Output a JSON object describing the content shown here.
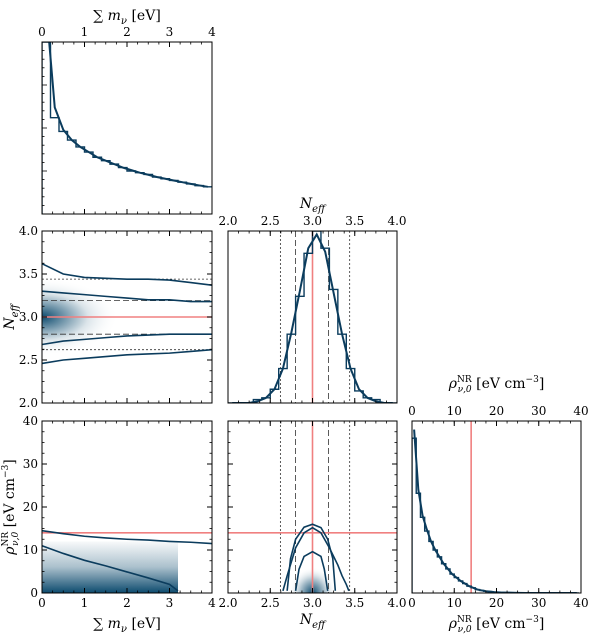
{
  "chart_data": {
    "type": "corner",
    "colors": {
      "posterior": "#0b3c5d",
      "truth": "#f08080",
      "interval": "#333333",
      "density_dark": "#0d4b6e",
      "frame": "#000000"
    },
    "parameters": [
      {
        "id": "sum_mnu",
        "label_main": "∑ m",
        "label_sub": "ν",
        "label_unit": " [eV]",
        "range": [
          0,
          4
        ],
        "ticks": [
          0,
          1,
          2,
          3,
          4
        ],
        "tick_labels": [
          "0",
          "1",
          "2",
          "3",
          "4"
        ]
      },
      {
        "id": "neff",
        "label_main": "N",
        "label_sub": "eff",
        "label_unit": "",
        "range": [
          2.0,
          4.0
        ],
        "ticks": [
          2.0,
          2.5,
          3.0,
          3.5,
          4.0
        ],
        "tick_labels": [
          "2.0",
          "2.5",
          "3.0",
          "3.5",
          "4.0"
        ],
        "truth": 3.0,
        "intervals": [
          2.62,
          2.8,
          3.0,
          3.19,
          3.44
        ]
      },
      {
        "id": "rho",
        "label_main": "ρ",
        "label_sub": "ν,0",
        "label_sup": "NR",
        "label_unit": " [eV cm",
        "label_unit_sup": "−3",
        "label_unit_end": "]",
        "range": [
          0,
          40
        ],
        "ticks": [
          0,
          10,
          20,
          30,
          40
        ],
        "tick_labels": [
          "0",
          "10",
          "20",
          "30",
          "40"
        ],
        "truth": 14.0
      }
    ],
    "marginal_sum_mnu": {
      "x": [
        0.1,
        0.3,
        0.5,
        0.7,
        0.9,
        1.1,
        1.3,
        1.5,
        1.7,
        1.9,
        2.1,
        2.3,
        2.5,
        2.7,
        2.9,
        3.1,
        3.3,
        3.5,
        3.7,
        3.9
      ],
      "hist": [
        1.0,
        0.56,
        0.48,
        0.43,
        0.39,
        0.36,
        0.33,
        0.31,
        0.29,
        0.27,
        0.25,
        0.24,
        0.23,
        0.215,
        0.205,
        0.195,
        0.185,
        0.175,
        0.165,
        0.158
      ],
      "smooth": [
        1.2,
        0.62,
        0.49,
        0.43,
        0.39,
        0.36,
        0.33,
        0.31,
        0.29,
        0.27,
        0.255,
        0.24,
        0.228,
        0.215,
        0.205,
        0.195,
        0.185,
        0.175,
        0.166,
        0.158
      ]
    },
    "marginal_neff": {
      "x": [
        2.05,
        2.15,
        2.25,
        2.35,
        2.45,
        2.55,
        2.65,
        2.75,
        2.85,
        2.95,
        3.05,
        3.15,
        3.25,
        3.35,
        3.45,
        3.55,
        3.65,
        3.75,
        3.85,
        3.95
      ],
      "hist": [
        0.0,
        0.0,
        0.0,
        0.02,
        0.03,
        0.08,
        0.2,
        0.4,
        0.62,
        0.87,
        1.0,
        0.9,
        0.66,
        0.4,
        0.2,
        0.07,
        0.03,
        0.02,
        0.0,
        0.0
      ],
      "smooth": [
        0.0,
        0.0,
        0.0,
        0.01,
        0.03,
        0.08,
        0.2,
        0.41,
        0.65,
        0.9,
        0.98,
        0.88,
        0.64,
        0.4,
        0.2,
        0.08,
        0.03,
        0.01,
        0.0,
        0.0
      ]
    },
    "marginal_rho": {
      "x": [
        0.5,
        1.5,
        2.5,
        3.5,
        4.5,
        5.5,
        6.5,
        7.5,
        8.5,
        9.5,
        10.5,
        11.5,
        12.5,
        13.5,
        14.5,
        15.5,
        16.5,
        17.5,
        18.5,
        19.5,
        21,
        23,
        25,
        27,
        29,
        31,
        33,
        35,
        37,
        39
      ],
      "hist": [
        0.9,
        0.58,
        0.44,
        0.36,
        0.3,
        0.25,
        0.21,
        0.17,
        0.14,
        0.11,
        0.09,
        0.07,
        0.055,
        0.04,
        0.03,
        0.02,
        0.015,
        0.01,
        0.008,
        0.005,
        0.003,
        0.002,
        0.001,
        0.0,
        0.0,
        0.0,
        0.0,
        0.0,
        0.0,
        0.0
      ],
      "smooth": [
        0.95,
        0.6,
        0.45,
        0.37,
        0.3,
        0.25,
        0.21,
        0.17,
        0.14,
        0.11,
        0.09,
        0.07,
        0.055,
        0.04,
        0.03,
        0.02,
        0.015,
        0.01,
        0.008,
        0.005,
        0.003,
        0.002,
        0.001,
        0.0,
        0.0,
        0.0,
        0.0,
        0.0,
        0.0,
        0.0
      ]
    },
    "joint_sum_mnu_neff": {
      "contours": [
        {
          "x": [
            0,
            0.5,
            1,
            1.5,
            2,
            2.5,
            3,
            3.5,
            4
          ],
          "y": [
            3.62,
            3.5,
            3.46,
            3.45,
            3.44,
            3.44,
            3.43,
            3.4,
            3.37
          ]
        },
        {
          "x": [
            0,
            0.5,
            1,
            1.5,
            2,
            2.5,
            3,
            3.5,
            4
          ],
          "y": [
            3.3,
            3.28,
            3.26,
            3.24,
            3.22,
            3.2,
            3.2,
            3.18,
            3.18
          ]
        },
        {
          "x": [
            0,
            0.5,
            1,
            1.5,
            2,
            2.5,
            3,
            3.5,
            4
          ],
          "y": [
            2.68,
            2.72,
            2.74,
            2.76,
            2.78,
            2.79,
            2.8,
            2.8,
            2.8
          ]
        },
        {
          "x": [
            0,
            0.5,
            1,
            1.5,
            2,
            2.5,
            3,
            3.5,
            4
          ],
          "y": [
            2.46,
            2.5,
            2.52,
            2.54,
            2.56,
            2.57,
            2.58,
            2.6,
            2.62
          ]
        }
      ]
    },
    "joint_sum_mnu_rho": {
      "contours": [
        {
          "x": [
            0,
            0.5,
            1,
            1.5,
            2,
            2.5,
            3,
            3.5,
            4
          ],
          "y": [
            14.5,
            13.8,
            13.2,
            12.8,
            12.5,
            12.3,
            12.0,
            11.8,
            11.5
          ]
        },
        {
          "x": [
            0,
            0.5,
            1,
            1.5,
            2,
            2.5,
            3,
            3.2
          ],
          "y": [
            11.0,
            9.2,
            7.6,
            6.3,
            4.9,
            3.5,
            2.0,
            0.5
          ]
        }
      ]
    },
    "joint_neff_rho": {
      "contours": [
        {
          "x": [
            2.7,
            2.74,
            2.8,
            2.9,
            3.0,
            3.1,
            3.18,
            3.24,
            3.27
          ],
          "y": [
            0.5,
            8.0,
            12.5,
            15.3,
            16.0,
            15.2,
            12.5,
            8.0,
            0.5
          ]
        },
        {
          "x": [
            2.8,
            2.84,
            2.9,
            3.0,
            3.1,
            3.14,
            3.18
          ],
          "y": [
            0.5,
            5.5,
            8.5,
            9.6,
            8.5,
            5.5,
            0.5
          ]
        },
        {
          "x": [
            2.65,
            2.7,
            2.8,
            2.9,
            3.0,
            3.1,
            3.2,
            3.3,
            3.35,
            3.4,
            3.43
          ],
          "y": [
            0.5,
            4.0,
            10.5,
            14.0,
            15.2,
            14.0,
            10.5,
            6.5,
            4.0,
            2.0,
            0.5
          ]
        }
      ]
    }
  }
}
